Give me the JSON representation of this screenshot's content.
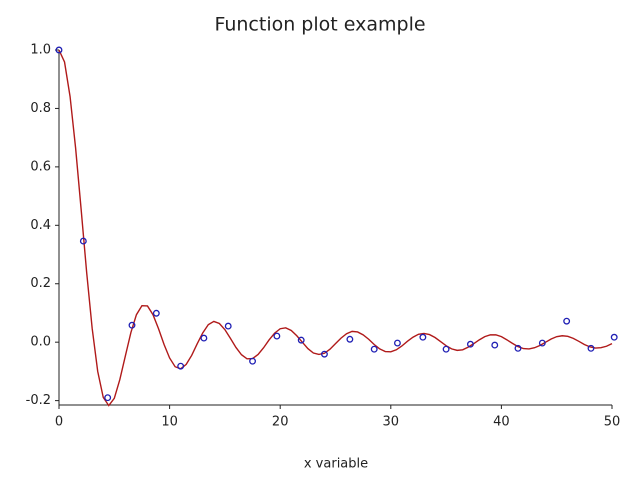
{
  "chart_data": {
    "type": "line",
    "title": "Function plot example",
    "xlabel": "x variable",
    "xlim": [
      0,
      50
    ],
    "ylim": [
      -0.215,
      1.0
    ],
    "xticks": [
      0,
      10,
      20,
      30,
      40,
      50
    ],
    "yticks": [
      {
        "value": 1.0,
        "label": "1.0"
      },
      0.8,
      0.6,
      0.4,
      0.2,
      {
        "value": 0.0,
        "label": "0.0"
      },
      -0.2
    ],
    "grid": false,
    "series": [
      {
        "type": "line",
        "color": "#b01a1a",
        "x": [
          0,
          0.5,
          1,
          1.5,
          2,
          2.5,
          3,
          3.5,
          4,
          4.5,
          5,
          5.5,
          6,
          6.5,
          7,
          7.5,
          8,
          8.5,
          9,
          9.5,
          10,
          10.5,
          11,
          11.5,
          12,
          12.5,
          13,
          13.5,
          14,
          14.5,
          15,
          15.5,
          16,
          16.5,
          17,
          17.5,
          18,
          18.5,
          19,
          19.5,
          20,
          20.5,
          21,
          21.5,
          22,
          22.5,
          23,
          23.5,
          24,
          24.5,
          25,
          25.5,
          26,
          26.5,
          27,
          27.5,
          28,
          28.5,
          29,
          29.5,
          30,
          30.5,
          31,
          31.5,
          32,
          32.5,
          33,
          33.5,
          34,
          34.5,
          35,
          35.5,
          36,
          36.5,
          37,
          37.5,
          38,
          38.5,
          39,
          39.5,
          40,
          40.5,
          41,
          41.5,
          42,
          42.5,
          43,
          43.5,
          44,
          44.5,
          45,
          45.5,
          46,
          46.5,
          47,
          47.5,
          48,
          48.5,
          49,
          49.5,
          50
        ],
        "values": [
          1,
          0.959,
          0.841,
          0.665,
          0.455,
          0.239,
          0.047,
          -0.1,
          -0.189,
          -0.217,
          -0.192,
          -0.128,
          -0.047,
          0.033,
          0.094,
          0.125,
          0.124,
          0.094,
          0.046,
          -0.008,
          -0.054,
          -0.084,
          -0.091,
          -0.076,
          -0.045,
          -0.005,
          0.032,
          0.06,
          0.071,
          0.064,
          0.043,
          0.013,
          -0.018,
          -0.043,
          -0.057,
          -0.056,
          -0.042,
          -0.019,
          0.008,
          0.031,
          0.046,
          0.049,
          0.04,
          0.022,
          0.0,
          -0.022,
          -0.037,
          -0.042,
          -0.038,
          -0.024,
          -0.005,
          0.014,
          0.029,
          0.037,
          0.035,
          0.025,
          0.01,
          -0.008,
          -0.023,
          -0.032,
          -0.033,
          -0.026,
          -0.013,
          0.003,
          0.017,
          0.027,
          0.03,
          0.026,
          0.016,
          0.002,
          -0.012,
          -0.023,
          -0.028,
          -0.026,
          -0.017,
          -0.005,
          0.008,
          0.019,
          0.025,
          0.025,
          0.019,
          0.008,
          -0.004,
          -0.015,
          -0.022,
          -0.023,
          -0.019,
          -0.011,
          0.0,
          0.011,
          0.019,
          0.022,
          0.02,
          0.013,
          0.003,
          -0.008,
          -0.016,
          -0.02,
          -0.019,
          -0.014,
          -0.005
        ]
      },
      {
        "type": "scatter",
        "color": "#1f1fb4",
        "x": [
          0,
          2.2,
          4.4,
          6.6,
          8.8,
          11,
          13.1,
          15.3,
          17.5,
          19.7,
          21.9,
          24,
          26.3,
          28.5,
          30.6,
          32.9,
          35,
          37.2,
          39.4,
          41.5,
          43.7,
          45.9,
          48.1,
          50.2
        ],
        "values": [
          1.0,
          0.346,
          -0.19,
          0.058,
          0.099,
          -0.082,
          0.014,
          0.055,
          -0.065,
          0.021,
          0.007,
          -0.041,
          0.01,
          -0.024,
          -0.003,
          0.017,
          -0.024,
          -0.007,
          -0.01,
          -0.021,
          -0.003,
          0.072,
          -0.021,
          0.017
        ]
      }
    ]
  }
}
